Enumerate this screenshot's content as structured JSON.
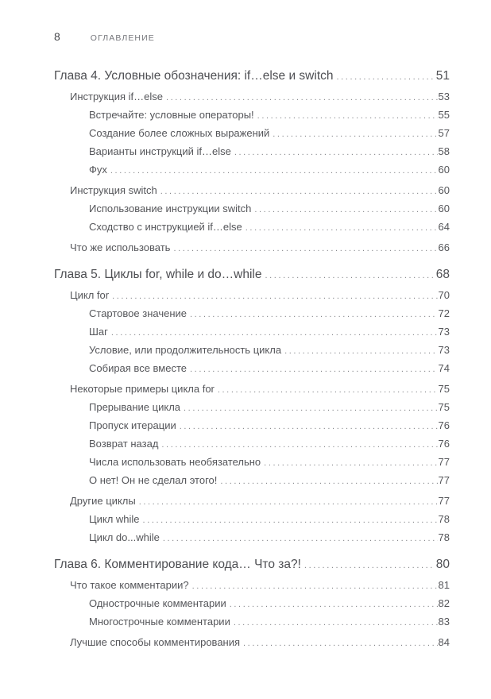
{
  "page": {
    "number": "8",
    "running_head": "ОГЛАВЛЕНИЕ"
  },
  "colors": {
    "text": "#55565a",
    "chapter_text": "#4e4f53",
    "leader_dots": "#85868a",
    "running_head": "#75767b",
    "background": "#ffffff"
  },
  "toc": {
    "entries": [
      {
        "level": 0,
        "title": "Глава 4. Условные обозначения: if…else и switch",
        "page": "51"
      },
      {
        "level": 1,
        "title": "Инструкция if…else",
        "page": "53"
      },
      {
        "level": 2,
        "title": "Встречайте: условные операторы!",
        "page": "55"
      },
      {
        "level": 2,
        "title": "Создание более сложных выражений",
        "page": "57"
      },
      {
        "level": 2,
        "title": "Варианты инструкций if…else",
        "page": "58"
      },
      {
        "level": 2,
        "title": "Фух",
        "page": "60"
      },
      {
        "level": 1,
        "title": "Инструкция switch",
        "page": "60"
      },
      {
        "level": 2,
        "title": "Использование инструкции switch",
        "page": "60"
      },
      {
        "level": 2,
        "title": "Сходство с инструкцией if…else",
        "page": "64"
      },
      {
        "level": 1,
        "title": "Что же использовать",
        "page": "66"
      },
      {
        "level": 0,
        "title": "Глава 5. Циклы for, while и do…while",
        "page": "68"
      },
      {
        "level": 1,
        "title": "Цикл for",
        "page": "70"
      },
      {
        "level": 2,
        "title": "Стартовое значение",
        "page": "72"
      },
      {
        "level": 2,
        "title": "Шаг",
        "page": "73"
      },
      {
        "level": 2,
        "title": "Условие, или продолжительность цикла",
        "page": "73"
      },
      {
        "level": 2,
        "title": "Собирая все вместе",
        "page": "74"
      },
      {
        "level": 1,
        "title": "Некоторые примеры цикла for",
        "page": "75"
      },
      {
        "level": 2,
        "title": "Прерывание цикла",
        "page": "75"
      },
      {
        "level": 2,
        "title": "Пропуск итерации",
        "page": "76"
      },
      {
        "level": 2,
        "title": "Возврат назад",
        "page": "76"
      },
      {
        "level": 2,
        "title": "Числа использовать необязательно",
        "page": "77"
      },
      {
        "level": 2,
        "title": "О нет! Он не сделал этого!",
        "page": "77"
      },
      {
        "level": 1,
        "title": "Другие циклы",
        "page": "77"
      },
      {
        "level": 2,
        "title": "Цикл while",
        "page": "78"
      },
      {
        "level": 2,
        "title": "Цикл do...while",
        "page": "78"
      },
      {
        "level": 0,
        "title": "Глава 6. Комментирование кода… Что за?!",
        "page": "80"
      },
      {
        "level": 1,
        "title": "Что такое комментарии?",
        "page": "81"
      },
      {
        "level": 2,
        "title": "Однострочные комментарии",
        "page": "82"
      },
      {
        "level": 2,
        "title": "Многострочные комментарии",
        "page": "83"
      },
      {
        "level": 1,
        "title": "Лучшие способы комментирования",
        "page": "84"
      }
    ]
  }
}
